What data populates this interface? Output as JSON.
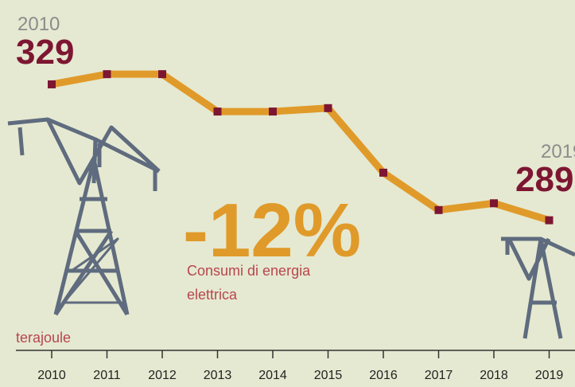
{
  "chart_data": {
    "type": "line",
    "categories": [
      "2010",
      "2011",
      "2012",
      "2013",
      "2014",
      "2015",
      "2016",
      "2017",
      "2018",
      "2019"
    ],
    "series": [
      {
        "name": null,
        "color": "#e09a2a",
        "marker_color": "#7d1632",
        "values": [
          329,
          332,
          332,
          321,
          321,
          322,
          303,
          292,
          294,
          289
        ]
      }
    ],
    "ylim": [
      280,
      340
    ],
    "unit_label": "terajoule",
    "headline": "-12%",
    "headline_caption": [
      "Consumi di energia",
      "elettrica"
    ]
  }
}
